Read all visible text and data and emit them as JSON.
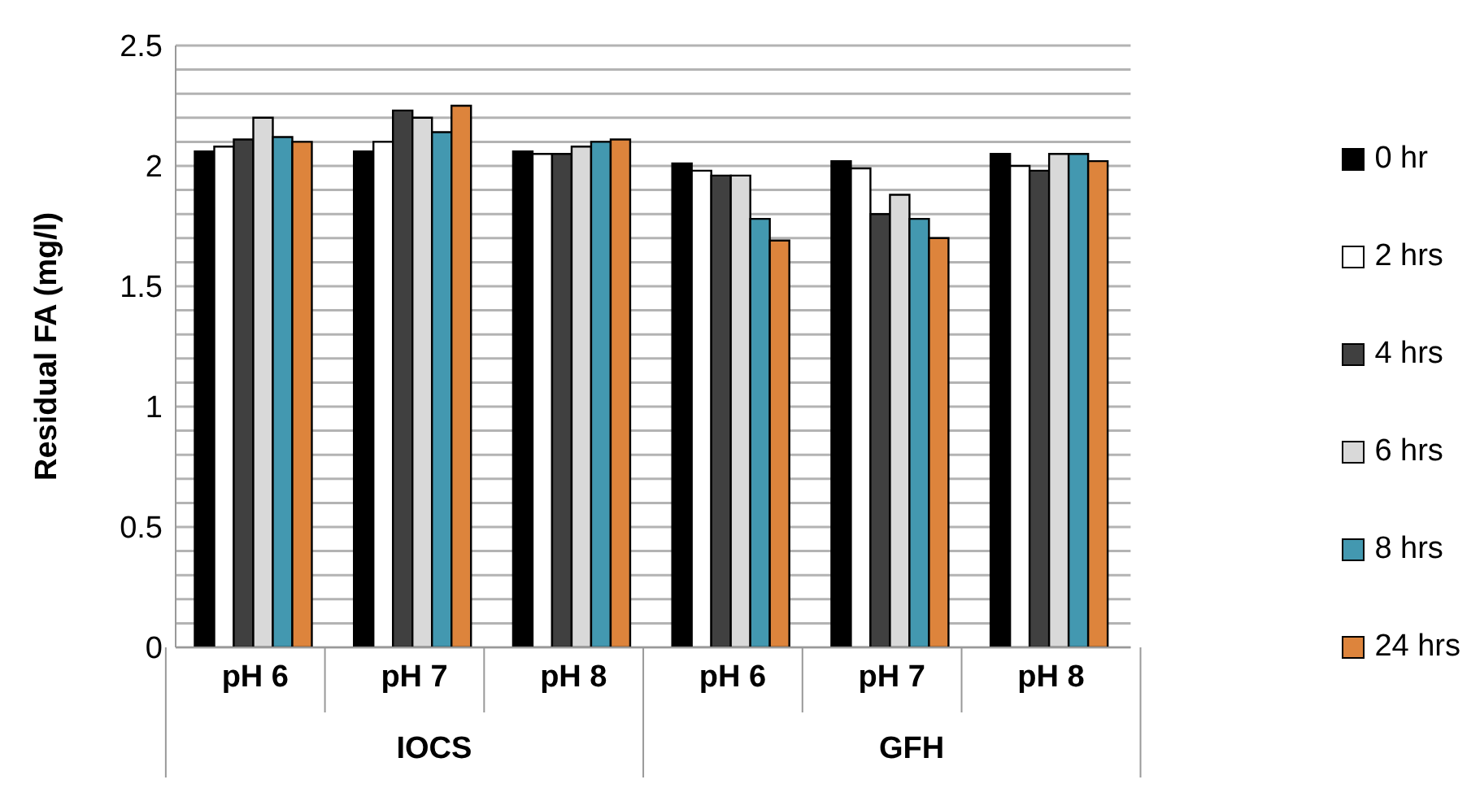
{
  "chart_data": {
    "type": "bar",
    "ylabel": "Residual FA (mg/l)",
    "categories": [
      "pH 6",
      "pH 7",
      "pH 8",
      "pH 6",
      "pH 7",
      "pH 8"
    ],
    "annotations": [
      "IOCS",
      "GFH"
    ],
    "series": [
      {
        "name": "0 hr",
        "color": "#000000",
        "values": [
          2.06,
          2.06,
          2.06,
          2.01,
          2.02,
          2.05
        ]
      },
      {
        "name": "2 hrs",
        "color": "#ffffff",
        "values": [
          2.08,
          2.1,
          2.05,
          1.98,
          1.99,
          2.0
        ]
      },
      {
        "name": "4 hrs",
        "color": "#404040",
        "values": [
          2.11,
          2.23,
          2.05,
          1.96,
          1.8,
          1.98
        ]
      },
      {
        "name": "6 hrs",
        "color": "#d9d9d9",
        "values": [
          2.2,
          2.2,
          2.08,
          1.96,
          1.88,
          2.05
        ]
      },
      {
        "name": "8 hrs",
        "color": "#4398b0",
        "values": [
          2.12,
          2.14,
          2.1,
          1.78,
          1.78,
          2.05
        ]
      },
      {
        "name": "24 hrs",
        "color": "#dd843c",
        "values": [
          2.1,
          2.25,
          2.11,
          1.69,
          1.7,
          2.02
        ]
      }
    ],
    "ylim": [
      0,
      2.5
    ],
    "yticks": [
      0,
      {
        "value": 0.1,
        "label": null
      },
      {
        "value": 0.2,
        "label": null
      },
      {
        "value": 0.3,
        "label": null
      },
      {
        "value": 0.4,
        "label": null
      },
      0.5,
      {
        "value": 0.6,
        "label": null
      },
      {
        "value": 0.7,
        "label": null
      },
      {
        "value": 0.8,
        "label": null
      },
      {
        "value": 0.9,
        "label": null
      },
      1,
      {
        "value": 1.1,
        "label": null
      },
      {
        "value": 1.2,
        "label": null
      },
      {
        "value": 1.3,
        "label": null
      },
      {
        "value": 1.4,
        "label": null
      },
      1.5,
      {
        "value": 1.6,
        "label": null
      },
      {
        "value": 1.7,
        "label": null
      },
      {
        "value": 1.8,
        "label": null
      },
      {
        "value": 1.9,
        "label": null
      },
      2,
      {
        "value": 2.1,
        "label": null
      },
      {
        "value": 2.2,
        "label": null
      },
      {
        "value": 2.3,
        "label": null
      },
      {
        "value": 2.4,
        "label": null
      },
      2.5
    ],
    "grid": "y",
    "legend": "right"
  }
}
